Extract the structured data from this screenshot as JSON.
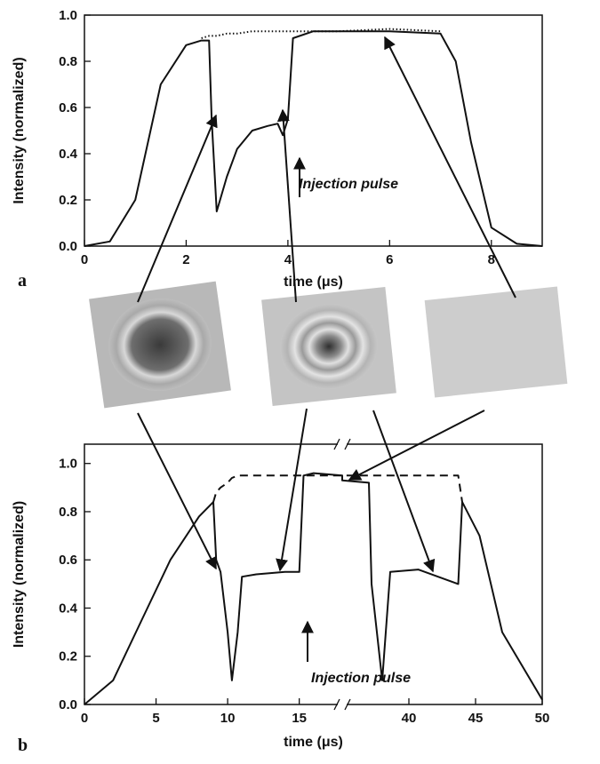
{
  "chart_data": [
    {
      "type": "line",
      "panel": "a",
      "xlabel": "time (μs)",
      "ylabel": "Intensity (normalized)",
      "xlim": [
        0,
        9
      ],
      "ylim": [
        0,
        1.0
      ],
      "xticks": [
        0,
        2,
        4,
        6,
        8
      ],
      "yticks": [
        {
          "value": 0,
          "label": "0.0"
        },
        0.2,
        0.4,
        0.6,
        0.8,
        {
          "value": 1.0,
          "label": "1.0"
        }
      ],
      "annotation": "Injection pulse",
      "x": [
        0,
        0.5,
        1,
        1.5,
        2,
        2.3,
        2.45,
        2.5,
        2.6,
        2.8,
        3,
        3.3,
        3.6,
        3.8,
        3.9,
        4.0,
        4.1,
        4.5,
        5,
        6,
        7,
        7.3,
        7.6,
        8,
        8.5,
        9
      ],
      "series": [
        {
          "color": "#111111",
          "dash": "solid",
          "values": [
            0,
            0.02,
            0.2,
            0.7,
            0.87,
            0.89,
            0.89,
            0.55,
            0.15,
            0.3,
            0.42,
            0.5,
            0.52,
            0.53,
            0.48,
            0.55,
            0.9,
            0.93,
            0.93,
            0.93,
            0.92,
            0.8,
            0.45,
            0.08,
            0.01,
            0
          ]
        },
        {
          "color": "#111111",
          "dash": "dotted",
          "values": [
            null,
            null,
            null,
            null,
            null,
            0.9,
            0.91,
            0.91,
            0.91,
            0.92,
            0.92,
            0.93,
            0.93,
            0.93,
            0.93,
            0.93,
            0.93,
            0.93,
            0.93,
            0.94,
            0.93,
            null,
            null,
            null,
            null,
            null
          ]
        }
      ]
    },
    {
      "type": "line",
      "panel": "b",
      "xlabel": "time (μs)",
      "ylabel": "Intensity (normalized)",
      "xlim": [
        0,
        50
      ],
      "xbreak": [
        18,
        35
      ],
      "ylim": [
        0,
        1.08
      ],
      "xticks": [
        0,
        5,
        10,
        15,
        40,
        45,
        50
      ],
      "yticks": [
        {
          "value": 0,
          "label": "0.0"
        },
        0.2,
        0.4,
        0.6,
        0.8,
        {
          "value": 1.0,
          "label": "1.0"
        }
      ],
      "annotation": "Injection pulse",
      "x": [
        0,
        2,
        4,
        6,
        8,
        9,
        9.2,
        9.5,
        10,
        10.3,
        10.7,
        11,
        12,
        14,
        15,
        15.3,
        16,
        18,
        35,
        37,
        37.2,
        38,
        38.6,
        40.7,
        43.7,
        44,
        45.3,
        47,
        50
      ],
      "series": [
        {
          "color": "#111111",
          "dash": "solid",
          "values": [
            0,
            0.1,
            0.35,
            0.6,
            0.78,
            0.84,
            0.6,
            0.55,
            0.3,
            0.1,
            0.3,
            0.53,
            0.54,
            0.55,
            0.55,
            0.95,
            0.96,
            0.95,
            0.93,
            0.92,
            0.5,
            0.1,
            0.55,
            0.56,
            0.5,
            0.84,
            0.7,
            0.3,
            0.02
          ]
        },
        {
          "color": "#111111",
          "dash": "dashed",
          "values": [
            null,
            null,
            null,
            null,
            null,
            0.84,
            0.88,
            0.9,
            0.92,
            0.94,
            0.95,
            0.95,
            0.95,
            0.95,
            0.95,
            0.95,
            0.95,
            0.95,
            0.95,
            0.95,
            0.95,
            0.95,
            0.95,
            0.95,
            0.95,
            0.84,
            null,
            null,
            null
          ]
        }
      ]
    }
  ]
}
